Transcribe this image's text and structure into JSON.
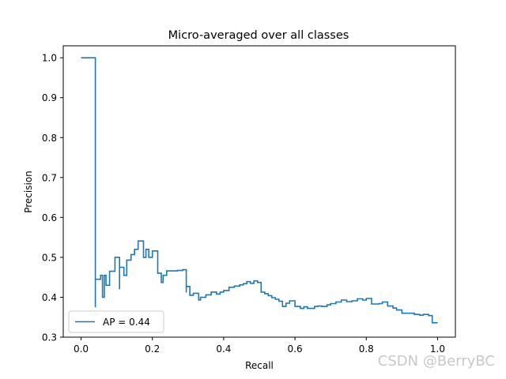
{
  "chart_data": {
    "type": "line",
    "drawstyle": "steps-post",
    "title": "Micro-averaged over all classes",
    "xlabel": "Recall",
    "ylabel": "Precision",
    "xlim": [
      -0.05,
      1.05
    ],
    "ylim": [
      0.3,
      1.03
    ],
    "x_ticks": [
      0.0,
      0.2,
      0.4,
      0.6,
      0.8,
      1.0
    ],
    "x_tick_labels": [
      "0.0",
      "0.2",
      "0.4",
      "0.6",
      "0.8",
      "1.0"
    ],
    "y_ticks": [
      0.3,
      0.4,
      0.5,
      0.6,
      0.7,
      0.8,
      0.9,
      1.0
    ],
    "y_tick_labels": [
      "0.3",
      "0.4",
      "0.5",
      "0.6",
      "0.7",
      "0.8",
      "0.9",
      "1.0"
    ],
    "grid": false,
    "legend_position": "lower-left",
    "series": [
      {
        "name": "AP = 0.44",
        "color": "#1f77b4",
        "points": [
          [
            0.0,
            1.0
          ],
          [
            0.04,
            0.375
          ],
          [
            0.04,
            0.445
          ],
          [
            0.055,
            0.455
          ],
          [
            0.06,
            0.4
          ],
          [
            0.065,
            0.455
          ],
          [
            0.07,
            0.43
          ],
          [
            0.08,
            0.465
          ],
          [
            0.095,
            0.5
          ],
          [
            0.108,
            0.42
          ],
          [
            0.108,
            0.475
          ],
          [
            0.12,
            0.455
          ],
          [
            0.128,
            0.493
          ],
          [
            0.14,
            0.507
          ],
          [
            0.15,
            0.52
          ],
          [
            0.16,
            0.541
          ],
          [
            0.175,
            0.5
          ],
          [
            0.182,
            0.52
          ],
          [
            0.19,
            0.5
          ],
          [
            0.2,
            0.516
          ],
          [
            0.215,
            0.46
          ],
          [
            0.225,
            0.437
          ],
          [
            0.23,
            0.455
          ],
          [
            0.24,
            0.466
          ],
          [
            0.26,
            0.466
          ],
          [
            0.27,
            0.467
          ],
          [
            0.285,
            0.469
          ],
          [
            0.295,
            0.412
          ],
          [
            0.295,
            0.427
          ],
          [
            0.305,
            0.405
          ],
          [
            0.315,
            0.41
          ],
          [
            0.33,
            0.393
          ],
          [
            0.335,
            0.4
          ],
          [
            0.35,
            0.406
          ],
          [
            0.365,
            0.413
          ],
          [
            0.38,
            0.408
          ],
          [
            0.39,
            0.413
          ],
          [
            0.4,
            0.417
          ],
          [
            0.415,
            0.425
          ],
          [
            0.43,
            0.428
          ],
          [
            0.445,
            0.431
          ],
          [
            0.455,
            0.434
          ],
          [
            0.465,
            0.439
          ],
          [
            0.475,
            0.435
          ],
          [
            0.485,
            0.441
          ],
          [
            0.495,
            0.437
          ],
          [
            0.505,
            0.413
          ],
          [
            0.515,
            0.409
          ],
          [
            0.525,
            0.404
          ],
          [
            0.535,
            0.399
          ],
          [
            0.545,
            0.395
          ],
          [
            0.555,
            0.39
          ],
          [
            0.565,
            0.377
          ],
          [
            0.575,
            0.385
          ],
          [
            0.585,
            0.391
          ],
          [
            0.6,
            0.377
          ],
          [
            0.615,
            0.372
          ],
          [
            0.625,
            0.376
          ],
          [
            0.635,
            0.372
          ],
          [
            0.645,
            0.372
          ],
          [
            0.655,
            0.377
          ],
          [
            0.665,
            0.378
          ],
          [
            0.675,
            0.377
          ],
          [
            0.69,
            0.381
          ],
          [
            0.7,
            0.384
          ],
          [
            0.715,
            0.388
          ],
          [
            0.73,
            0.393
          ],
          [
            0.745,
            0.389
          ],
          [
            0.76,
            0.391
          ],
          [
            0.775,
            0.396
          ],
          [
            0.79,
            0.393
          ],
          [
            0.8,
            0.397
          ],
          [
            0.815,
            0.383
          ],
          [
            0.835,
            0.384
          ],
          [
            0.845,
            0.388
          ],
          [
            0.86,
            0.378
          ],
          [
            0.875,
            0.373
          ],
          [
            0.885,
            0.368
          ],
          [
            0.9,
            0.36
          ],
          [
            0.915,
            0.36
          ],
          [
            0.935,
            0.357
          ],
          [
            0.95,
            0.355
          ],
          [
            0.96,
            0.357
          ],
          [
            0.975,
            0.354
          ],
          [
            0.985,
            0.336
          ],
          [
            1.0,
            0.336
          ]
        ]
      }
    ]
  },
  "watermark": "CSDN @BerryBC"
}
